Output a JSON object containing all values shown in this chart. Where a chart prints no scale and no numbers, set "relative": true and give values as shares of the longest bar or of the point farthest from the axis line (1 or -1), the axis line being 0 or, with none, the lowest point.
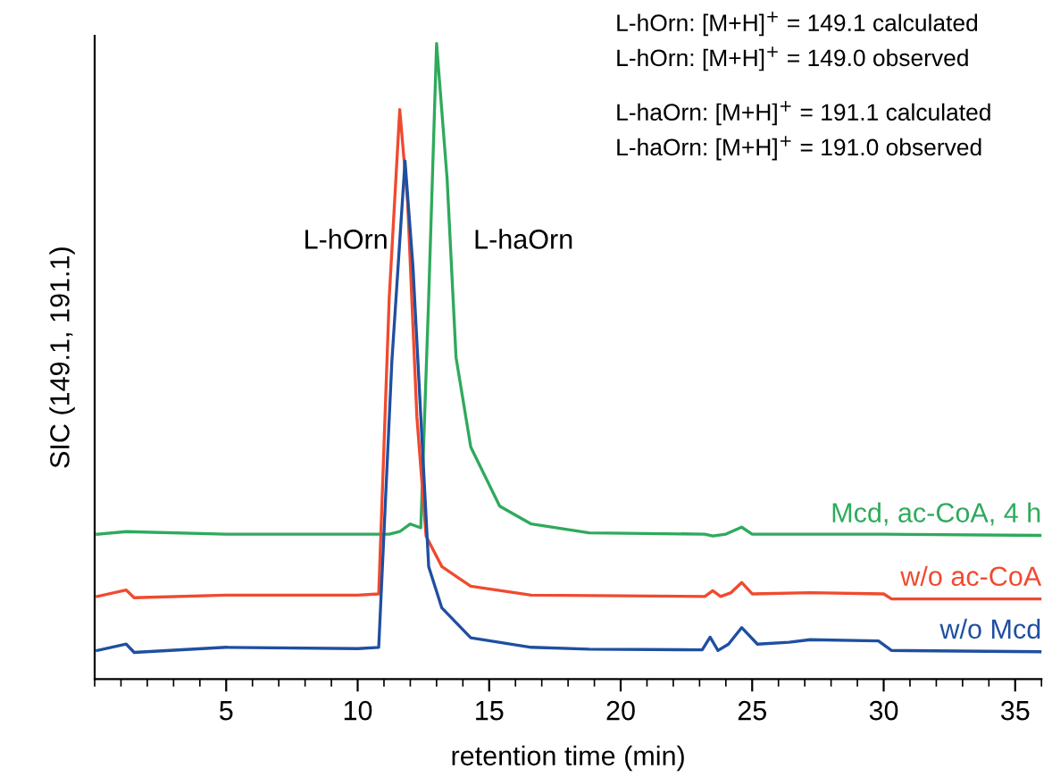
{
  "chart_data": {
    "type": "line",
    "relative": true,
    "xlabel": "retention time (min)",
    "ylabel": "SIC (149.1, 191.1)",
    "xlim": [
      0,
      36
    ],
    "xticks": [
      5,
      10,
      15,
      20,
      25,
      30,
      35
    ],
    "grid": false,
    "legend": false,
    "marker": "none",
    "line_style": "solid",
    "annotations": [
      "L-hOrn",
      "L-haOrn",
      "L-hOrn: [M+H]$^{+}$ = 149.1 calculated",
      "L-hOrn: [M+H]$^{+}$ = 149.0 observed",
      "L-haOrn: [M+H]$^{+}$ = 191.1 calculated",
      "L-haOrn: [M+H]$^{+}$ = 191.0 observed"
    ],
    "series": [
      {
        "name": "Mcd, ac-CoA, 4 h",
        "color": "#2eaa5c",
        "x": [
          0.1,
          1.2,
          5,
          10,
          11.2,
          11.6,
          12.0,
          12.4,
          12.7,
          13.0,
          13.4,
          13.74,
          14.3,
          15.4,
          16.6,
          18.8,
          23.2,
          23.5,
          24.0,
          24.6,
          25.0,
          30,
          36
        ],
        "values": [
          0.228,
          0.232,
          0.228,
          0.228,
          0.228,
          0.232,
          0.244,
          0.238,
          0.6,
          1.0,
          0.787,
          0.506,
          0.365,
          0.272,
          0.244,
          0.23,
          0.228,
          0.225,
          0.228,
          0.239,
          0.228,
          0.228,
          0.226
        ]
      },
      {
        "name": "w/o ac-CoA",
        "color": "#f04a2f",
        "x": [
          0.1,
          1.2,
          1.5,
          5,
          10,
          10.8,
          11.2,
          11.6,
          11.9,
          12.25,
          12.6,
          13.2,
          14.3,
          16.6,
          23.2,
          23.5,
          23.8,
          24.2,
          24.6,
          25.0,
          27.2,
          30,
          30.3,
          36
        ],
        "values": [
          0.13,
          0.14,
          0.128,
          0.132,
          0.132,
          0.134,
          0.6,
          0.896,
          0.75,
          0.413,
          0.225,
          0.177,
          0.146,
          0.132,
          0.13,
          0.139,
          0.13,
          0.136,
          0.152,
          0.134,
          0.136,
          0.134,
          0.126,
          0.126
        ]
      },
      {
        "name": "w/o Mcd",
        "color": "#1f4fa0",
        "x": [
          0.1,
          1.2,
          1.5,
          5,
          10,
          10.8,
          11.3,
          11.8,
          12.1,
          12.4,
          12.7,
          13.2,
          14.3,
          16.6,
          18.8,
          23.1,
          23.4,
          23.7,
          24.1,
          24.6,
          25.2,
          26.4,
          27.2,
          29.8,
          30.3,
          36
        ],
        "values": [
          0.045,
          0.055,
          0.042,
          0.05,
          0.048,
          0.05,
          0.5,
          0.815,
          0.65,
          0.413,
          0.177,
          0.112,
          0.065,
          0.05,
          0.047,
          0.046,
          0.066,
          0.045,
          0.055,
          0.081,
          0.055,
          0.058,
          0.062,
          0.06,
          0.045,
          0.043
        ]
      }
    ]
  }
}
